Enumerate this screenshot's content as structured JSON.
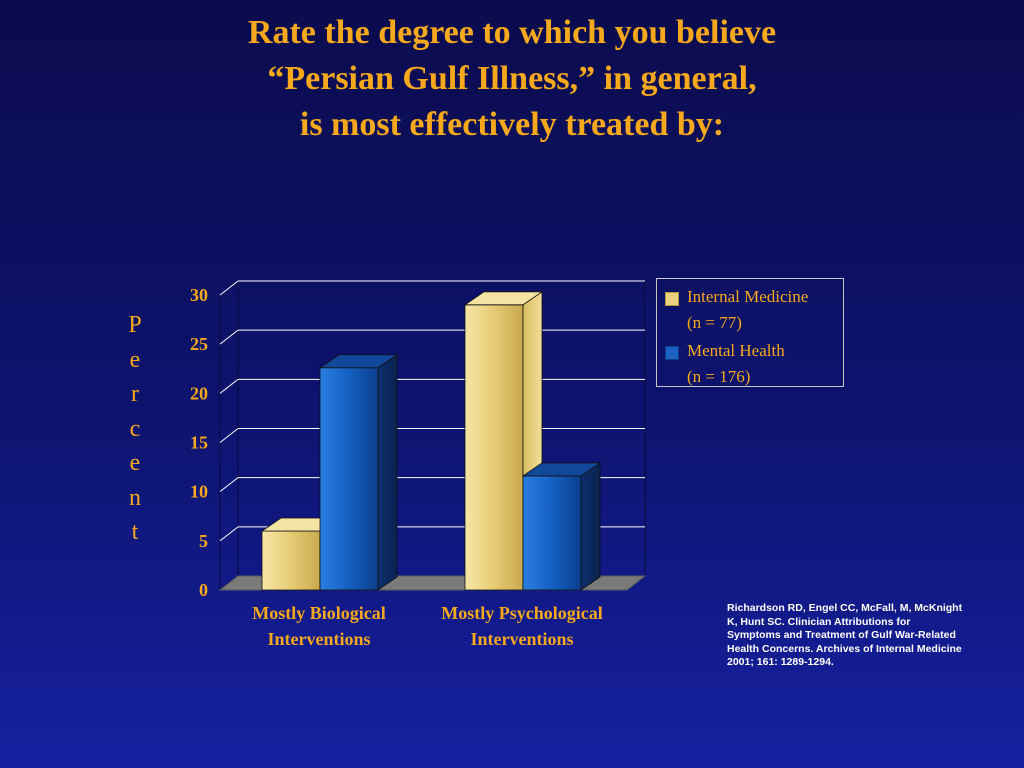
{
  "title_lines": [
    "Rate the degree to which you believe",
    "“Persian Gulf Illness,” in general,",
    "is most effectively treated by:"
  ],
  "chart_data": {
    "type": "bar",
    "ylabel": "Percent",
    "ylim": [
      0,
      30
    ],
    "yticks": [
      "0",
      "5",
      "10",
      "15",
      "20",
      "25",
      "30"
    ],
    "categories": [
      {
        "lines": [
          "Mostly Biological",
          "Interventions"
        ]
      },
      {
        "lines": [
          "Mostly Psychological",
          "Interventions"
        ]
      }
    ],
    "series": [
      {
        "name": "Internal Medicine",
        "sub": "(n = 77)",
        "values": [
          6,
          29
        ],
        "color": "#f0da8c"
      },
      {
        "name": "Mental Health",
        "sub": "(n = 176)",
        "values": [
          22.6,
          11.6
        ],
        "color": "#1a62c4"
      }
    ],
    "grid": true,
    "legend_position": "right"
  },
  "colors": {
    "title": "#f7a81b",
    "grid": "#ffffff",
    "floor": "#7a7a7a"
  },
  "citation_lines": [
    "Richardson RD, Engel CC, McFall, M, McKnight",
    "K, Hunt SC. Clinician  Attributions for",
    "Symptoms and Treatment of Gulf War-Related",
    "Health Concerns. Archives of Internal Medicine",
    "2001; 161: 1289-1294."
  ]
}
